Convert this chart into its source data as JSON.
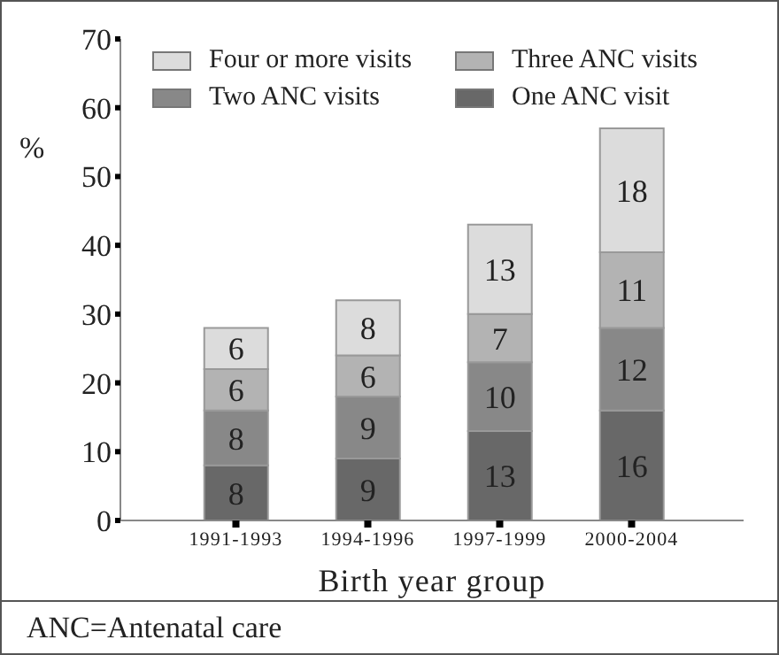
{
  "chart_data": {
    "type": "bar",
    "stacked": true,
    "xlabel": "Birth year group",
    "ylabel": "%",
    "categories": [
      "1991-1993",
      "1994-1996",
      "1997-1999",
      "2000-2004"
    ],
    "series": [
      {
        "name": "One ANC visit",
        "color": "#686868",
        "values": [
          8,
          9,
          13,
          16
        ]
      },
      {
        "name": "Two ANC visits",
        "color": "#888888",
        "values": [
          8,
          9,
          10,
          12
        ]
      },
      {
        "name": "Three ANC visits",
        "color": "#b3b3b3",
        "values": [
          6,
          6,
          7,
          11
        ]
      },
      {
        "name": "Four or more visits",
        "color": "#dcdcdc",
        "values": [
          6,
          8,
          13,
          18
        ]
      }
    ],
    "ylim": [
      0,
      70
    ],
    "yticks": [
      0,
      10,
      20,
      30,
      40,
      50,
      60,
      70
    ],
    "data_labels": true,
    "legend": "top",
    "grid": false,
    "annotations": [
      "ANC=Antenatal care"
    ]
  }
}
